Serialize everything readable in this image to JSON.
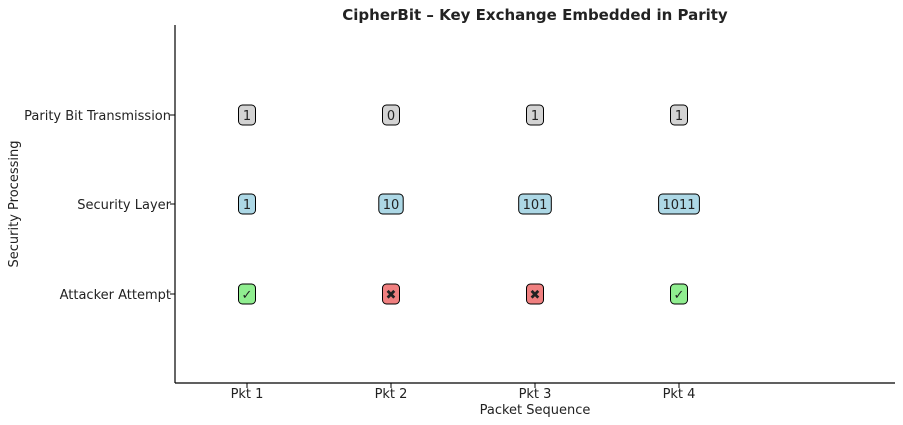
{
  "chart_data": {
    "type": "table",
    "title": "CipherBit – Key Exchange Embedded in Parity",
    "xlabel": "Packet Sequence",
    "ylabel": "Security Processing",
    "categories": [
      "Pkt 1",
      "Pkt 2",
      "Pkt 3",
      "Pkt 4"
    ],
    "rows": [
      {
        "label": "Parity Bit Transmission",
        "cells": [
          "1",
          "0",
          "1",
          "1"
        ]
      },
      {
        "label": "Security Layer",
        "cells": [
          "1",
          "10",
          "101",
          "1011"
        ]
      },
      {
        "label": "Attacker Attempt",
        "cells": [
          "✓",
          "✖",
          "✖",
          "✓"
        ]
      }
    ],
    "grid": false
  },
  "colors": {
    "parity": "#d3d3d3",
    "security": "#add8e6",
    "success": "#90ee90",
    "fail": "#f08080",
    "axis": "#000000"
  }
}
